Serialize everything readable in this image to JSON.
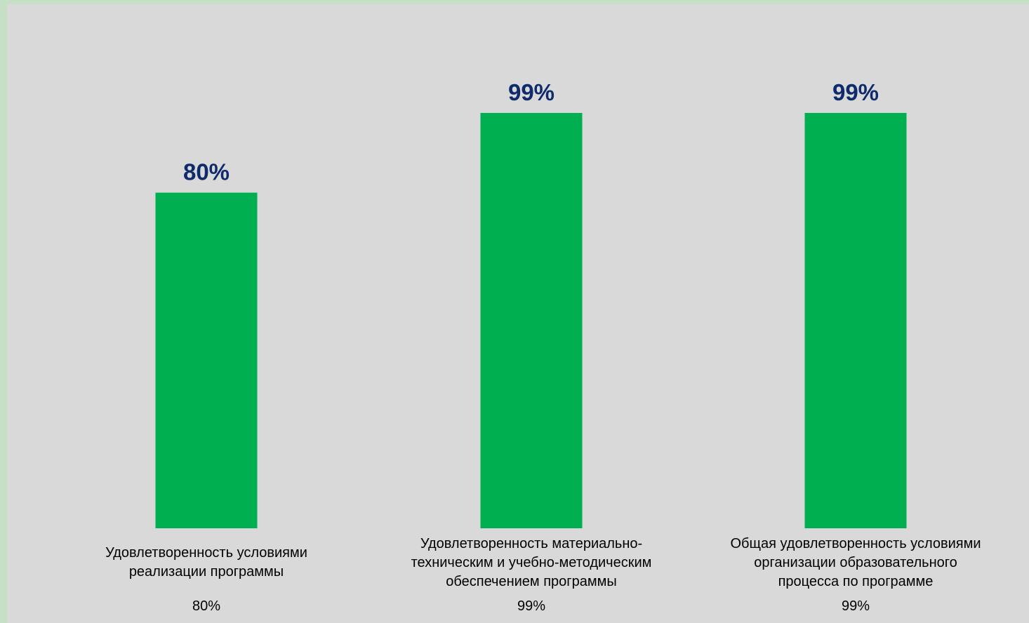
{
  "chart_data": {
    "type": "bar",
    "categories": [
      [
        "Удовлетворенность условиями",
        "реализации программы"
      ],
      [
        "Удовлетворенность материально-",
        "техническим и учебно-методическим",
        "обеспечением программы"
      ],
      [
        "Общая удовлетворенность условиями",
        "организации образовательного",
        "процесса по программе"
      ]
    ],
    "values": [
      80,
      99,
      99
    ],
    "value_labels": [
      "80%",
      "99%",
      "99%"
    ],
    "table_values": [
      "80%",
      "99%",
      "99%"
    ],
    "ylim": [
      0,
      100
    ],
    "grid": false,
    "colors": {
      "bar": "#00b050",
      "value_label": "#0f2b6b",
      "panel": "#d9d9d9",
      "frame": "#c6e0c6"
    }
  }
}
